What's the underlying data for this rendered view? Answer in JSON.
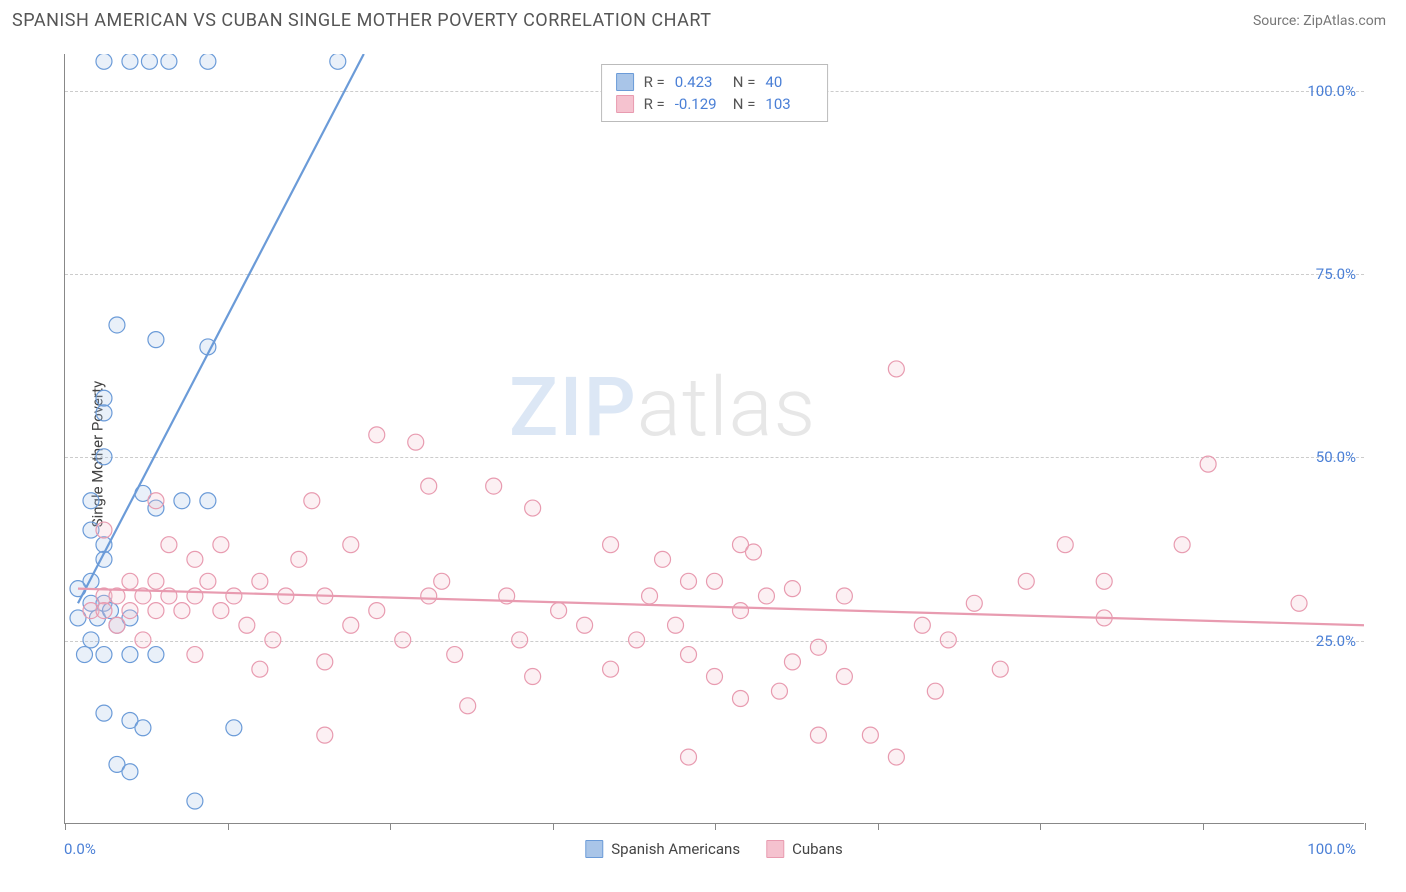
{
  "header": {
    "title": "SPANISH AMERICAN VS CUBAN SINGLE MOTHER POVERTY CORRELATION CHART",
    "source": "Source: ZipAtlas.com"
  },
  "ylabel": "Single Mother Poverty",
  "watermark": {
    "part1": "ZIP",
    "part2": "atlas"
  },
  "chart": {
    "type": "scatter",
    "background_color": "#ffffff",
    "grid_color": "#cccccc",
    "axis_color": "#888888",
    "tick_label_color": "#4a7fd6",
    "xlim": [
      0,
      100
    ],
    "ylim": [
      0,
      105
    ],
    "yticks": [
      25,
      50,
      75,
      100
    ],
    "ytick_labels": [
      "25.0%",
      "50.0%",
      "75.0%",
      "100.0%"
    ],
    "xticks": [
      0,
      12.5,
      25,
      37.5,
      50,
      62.5,
      75,
      87.5,
      100
    ],
    "xaxis_min_label": "0.0%",
    "xaxis_max_label": "100.0%",
    "marker_radius": 8,
    "marker_stroke_width": 1.2,
    "marker_fill_opacity": 0.25,
    "trend_line_width": 2.2
  },
  "series": [
    {
      "id": "spanish_americans",
      "label": "Spanish Americans",
      "color_stroke": "#6b9bd8",
      "color_fill": "#a9c5e8",
      "trend": {
        "x0": 1,
        "y0": 30,
        "x1": 23,
        "y1": 105,
        "dashed_x1": 27,
        "dashed_y1": 118
      },
      "R": "0.423",
      "N": "40",
      "points": [
        [
          3,
          104
        ],
        [
          5,
          104
        ],
        [
          6.5,
          104
        ],
        [
          8,
          104
        ],
        [
          11,
          104
        ],
        [
          21,
          104
        ],
        [
          4,
          68
        ],
        [
          7,
          66
        ],
        [
          11,
          65
        ],
        [
          3,
          58
        ],
        [
          3,
          56
        ],
        [
          3,
          50
        ],
        [
          2,
          44
        ],
        [
          6,
          45
        ],
        [
          7,
          43
        ],
        [
          9,
          44
        ],
        [
          11,
          44
        ],
        [
          2,
          40
        ],
        [
          3,
          38
        ],
        [
          3,
          36
        ],
        [
          2,
          33
        ],
        [
          1,
          32
        ],
        [
          2,
          30
        ],
        [
          3,
          30
        ],
        [
          1,
          28
        ],
        [
          2.5,
          28
        ],
        [
          3.5,
          29
        ],
        [
          4,
          27
        ],
        [
          5,
          28
        ],
        [
          2,
          25
        ],
        [
          1.5,
          23
        ],
        [
          3,
          23
        ],
        [
          5,
          23
        ],
        [
          7,
          23
        ],
        [
          3,
          15
        ],
        [
          5,
          14
        ],
        [
          6,
          13
        ],
        [
          13,
          13
        ],
        [
          4,
          8
        ],
        [
          5,
          7
        ],
        [
          10,
          3
        ]
      ]
    },
    {
      "id": "cubans",
      "label": "Cubans",
      "color_stroke": "#e89bb0",
      "color_fill": "#f5c2cf",
      "trend": {
        "x0": 1,
        "y0": 32,
        "x1": 100,
        "y1": 27
      },
      "R": "-0.129",
      "N": "103",
      "points": [
        [
          64,
          62
        ],
        [
          24,
          53
        ],
        [
          27,
          52
        ],
        [
          88,
          49
        ],
        [
          28,
          46
        ],
        [
          33,
          46
        ],
        [
          7,
          44
        ],
        [
          19,
          44
        ],
        [
          36,
          43
        ],
        [
          3,
          40
        ],
        [
          8,
          38
        ],
        [
          12,
          38
        ],
        [
          22,
          38
        ],
        [
          42,
          38
        ],
        [
          52,
          38
        ],
        [
          53,
          37
        ],
        [
          77,
          38
        ],
        [
          86,
          38
        ],
        [
          10,
          36
        ],
        [
          18,
          36
        ],
        [
          46,
          36
        ],
        [
          5,
          33
        ],
        [
          7,
          33
        ],
        [
          11,
          33
        ],
        [
          15,
          33
        ],
        [
          29,
          33
        ],
        [
          48,
          33
        ],
        [
          50,
          33
        ],
        [
          56,
          32
        ],
        [
          74,
          33
        ],
        [
          80,
          33
        ],
        [
          3,
          31
        ],
        [
          4,
          31
        ],
        [
          6,
          31
        ],
        [
          8,
          31
        ],
        [
          10,
          31
        ],
        [
          13,
          31
        ],
        [
          17,
          31
        ],
        [
          20,
          31
        ],
        [
          28,
          31
        ],
        [
          34,
          31
        ],
        [
          45,
          31
        ],
        [
          54,
          31
        ],
        [
          60,
          31
        ],
        [
          70,
          30
        ],
        [
          95,
          30
        ],
        [
          2,
          29
        ],
        [
          3,
          29
        ],
        [
          5,
          29
        ],
        [
          7,
          29
        ],
        [
          9,
          29
        ],
        [
          12,
          29
        ],
        [
          24,
          29
        ],
        [
          38,
          29
        ],
        [
          52,
          29
        ],
        [
          4,
          27
        ],
        [
          14,
          27
        ],
        [
          22,
          27
        ],
        [
          40,
          27
        ],
        [
          47,
          27
        ],
        [
          66,
          27
        ],
        [
          80,
          28
        ],
        [
          6,
          25
        ],
        [
          16,
          25
        ],
        [
          26,
          25
        ],
        [
          35,
          25
        ],
        [
          44,
          25
        ],
        [
          58,
          24
        ],
        [
          68,
          25
        ],
        [
          10,
          23
        ],
        [
          20,
          22
        ],
        [
          30,
          23
        ],
        [
          48,
          23
        ],
        [
          56,
          22
        ],
        [
          15,
          21
        ],
        [
          36,
          20
        ],
        [
          42,
          21
        ],
        [
          50,
          20
        ],
        [
          60,
          20
        ],
        [
          72,
          21
        ],
        [
          31,
          16
        ],
        [
          52,
          17
        ],
        [
          55,
          18
        ],
        [
          67,
          18
        ],
        [
          20,
          12
        ],
        [
          58,
          12
        ],
        [
          62,
          12
        ],
        [
          48,
          9
        ],
        [
          64,
          9
        ]
      ]
    }
  ],
  "bottom_legend": [
    {
      "label": "Spanish Americans",
      "fill": "#a9c5e8",
      "stroke": "#6b9bd8"
    },
    {
      "label": "Cubans",
      "fill": "#f5c2cf",
      "stroke": "#e89bb0"
    }
  ],
  "stats_box": {
    "rows": [
      {
        "swatch_fill": "#a9c5e8",
        "swatch_stroke": "#6b9bd8",
        "R": "0.423",
        "N": "40"
      },
      {
        "swatch_fill": "#f5c2cf",
        "swatch_stroke": "#e89bb0",
        "R": "-0.129",
        "N": "103"
      }
    ]
  }
}
